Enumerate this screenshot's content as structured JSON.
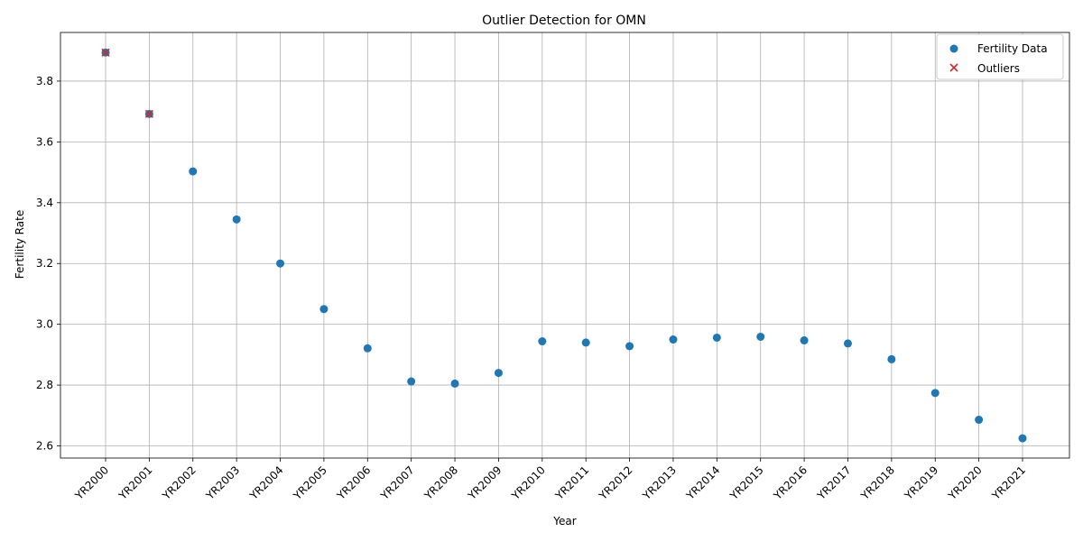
{
  "chart_data": {
    "type": "scatter",
    "title": "Outlier Detection for OMN",
    "xlabel": "Year",
    "ylabel": "Fertility Rate",
    "categories": [
      "YR2000",
      "YR2001",
      "YR2002",
      "YR2003",
      "YR2004",
      "YR2005",
      "YR2006",
      "YR2007",
      "YR2008",
      "YR2009",
      "YR2010",
      "YR2011",
      "YR2012",
      "YR2013",
      "YR2014",
      "YR2015",
      "YR2016",
      "YR2017",
      "YR2018",
      "YR2019",
      "YR2020",
      "YR2021"
    ],
    "series": [
      {
        "name": "Fertility Data",
        "marker": "circle",
        "color": "#1f77b4",
        "values": [
          3.894,
          3.692,
          3.503,
          3.345,
          3.2,
          3.05,
          2.921,
          2.812,
          2.805,
          2.84,
          2.944,
          2.94,
          2.928,
          2.95,
          2.956,
          2.959,
          2.947,
          2.937,
          2.885,
          2.774,
          2.686,
          2.625
        ]
      },
      {
        "name": "Outliers",
        "marker": "x",
        "color": "#d62728",
        "categories": [
          "YR2000",
          "YR2001"
        ],
        "values": [
          3.894,
          3.692
        ]
      }
    ],
    "ylim": [
      2.56,
      3.96
    ],
    "yticks": [
      2.6,
      2.8,
      3.0,
      3.2,
      3.4,
      3.6,
      3.8
    ],
    "grid": true,
    "legend_position": "top-right"
  }
}
